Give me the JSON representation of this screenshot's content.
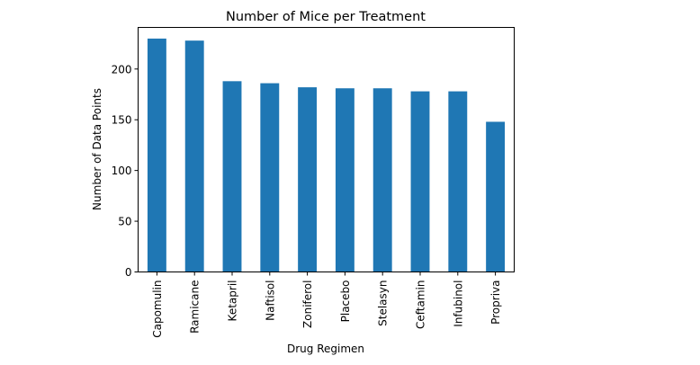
{
  "chart_data": {
    "type": "bar",
    "title": "Number of Mice per Treatment",
    "xlabel": "Drug Regimen",
    "ylabel": "Number of Data Points",
    "categories": [
      "Capomulin",
      "Ramicane",
      "Ketapril",
      "Naftisol",
      "Zoniferol",
      "Placebo",
      "Stelasyn",
      "Ceftamin",
      "Infubinol",
      "Propriva"
    ],
    "values": [
      230,
      228,
      188,
      186,
      182,
      181,
      181,
      178,
      178,
      148
    ],
    "ylim": [
      0,
      241
    ],
    "yticks": [
      0,
      50,
      100,
      150,
      200
    ],
    "bar_color": "#1f77b4",
    "grid": false,
    "legend": "none"
  }
}
